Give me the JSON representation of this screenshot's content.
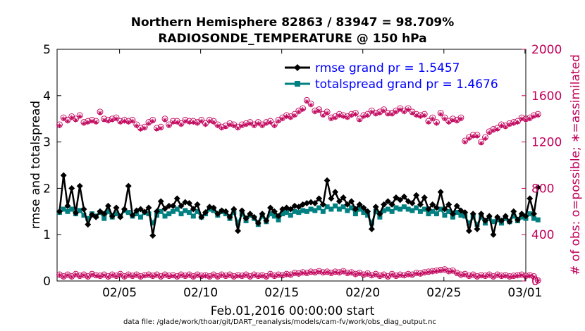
{
  "title_line1": "Northern Hemisphere 82863 / 83947 = 98.709%",
  "title_line2": "RADIOSONDE_TEMPERATURE @ 150 hPa",
  "xlabel": "Feb.01,2016 00:00:00 start",
  "ylabel_left": "rmse and totalspread",
  "ylabel_right": "# of obs: o=possible; ∗=assimilated",
  "footnote": "data file: /glade/work/thoar/git/DART_reanalysis/models/cam-fv/work/obs_diag_output.nc",
  "legend": {
    "rmse": "rmse grand pr = 1.5457",
    "spread": "totalspread grand pr = 1.4676"
  },
  "colors": {
    "rmse": "#000000",
    "spread": "#008080",
    "obs": "#c0005a"
  },
  "chart_data": {
    "type": "line",
    "x_unit": "days since Feb.01,2016 00:00:00",
    "xlim": [
      0,
      29
    ],
    "ylim_left": [
      0,
      5
    ],
    "ylim_right": [
      0,
      2000
    ],
    "x_ticks": [
      {
        "x": 4,
        "label": "02/05"
      },
      {
        "x": 9,
        "label": "02/10"
      },
      {
        "x": 14,
        "label": "02/15"
      },
      {
        "x": 19,
        "label": "02/20"
      },
      {
        "x": 24,
        "label": "02/25"
      },
      {
        "x": 29,
        "label": "03/01"
      }
    ],
    "y_ticks_left": [
      0,
      1,
      2,
      3,
      4,
      5
    ],
    "y_ticks_right": [
      0,
      400,
      800,
      1200,
      1600,
      2000
    ],
    "grid": false,
    "legend_position": "top-right",
    "series": [
      {
        "name": "rmse grand pr = 1.5457",
        "axis": "left",
        "values": [
          1.5,
          2.28,
          1.62,
          2.0,
          1.47,
          2.05,
          1.55,
          1.22,
          1.43,
          1.38,
          1.5,
          1.45,
          1.62,
          1.4,
          1.58,
          1.38,
          1.55,
          2.05,
          1.42,
          1.52,
          1.55,
          1.49,
          1.58,
          0.98,
          1.5,
          1.72,
          1.56,
          1.62,
          1.62,
          1.78,
          1.62,
          1.7,
          1.68,
          1.55,
          1.65,
          1.38,
          1.48,
          1.6,
          1.58,
          1.45,
          1.52,
          1.5,
          1.38,
          1.55,
          1.08,
          1.52,
          1.35,
          1.45,
          1.38,
          1.25,
          1.45,
          1.3,
          1.58,
          1.5,
          1.4,
          1.55,
          1.58,
          1.55,
          1.62,
          1.6,
          1.65,
          1.68,
          1.7,
          1.68,
          1.78,
          1.65,
          2.17,
          1.78,
          1.92,
          1.72,
          1.8,
          1.65,
          1.72,
          1.55,
          1.65,
          1.58,
          1.5,
          1.12,
          1.6,
          1.45,
          1.65,
          1.72,
          1.65,
          1.8,
          1.75,
          1.82,
          1.72,
          1.68,
          1.85,
          1.65,
          1.8,
          1.55,
          1.65,
          1.58,
          1.92,
          1.55,
          1.65,
          1.45,
          1.62,
          1.52,
          1.48,
          1.08,
          1.45,
          1.12,
          1.45,
          1.3,
          1.4,
          1.0,
          1.38,
          1.3,
          1.4,
          1.28,
          1.5,
          1.32,
          1.45,
          1.4,
          1.78,
          1.45,
          2.02
        ]
      },
      {
        "name": "totalspread grand pr = 1.4676",
        "axis": "left",
        "values": [
          1.48,
          1.55,
          1.5,
          1.55,
          1.45,
          1.52,
          1.42,
          1.35,
          1.45,
          1.4,
          1.48,
          1.35,
          1.5,
          1.38,
          1.45,
          1.4,
          1.52,
          1.48,
          1.4,
          1.45,
          1.38,
          1.48,
          1.45,
          1.25,
          1.42,
          1.5,
          1.4,
          1.45,
          1.5,
          1.55,
          1.45,
          1.52,
          1.48,
          1.4,
          1.5,
          1.38,
          1.45,
          1.55,
          1.52,
          1.42,
          1.5,
          1.45,
          1.35,
          1.48,
          1.25,
          1.45,
          1.3,
          1.42,
          1.35,
          1.22,
          1.4,
          1.28,
          1.45,
          1.4,
          1.32,
          1.45,
          1.48,
          1.42,
          1.5,
          1.48,
          1.52,
          1.5,
          1.55,
          1.52,
          1.58,
          1.5,
          1.6,
          1.55,
          1.62,
          1.55,
          1.6,
          1.52,
          1.58,
          1.45,
          1.55,
          1.48,
          1.42,
          1.25,
          1.5,
          1.38,
          1.52,
          1.55,
          1.5,
          1.58,
          1.55,
          1.6,
          1.55,
          1.52,
          1.58,
          1.5,
          1.55,
          1.45,
          1.5,
          1.45,
          1.55,
          1.42,
          1.5,
          1.38,
          1.48,
          1.42,
          1.4,
          1.25,
          1.38,
          1.22,
          1.38,
          1.25,
          1.35,
          1.28,
          1.32,
          1.25,
          1.35,
          1.28,
          1.4,
          1.3,
          1.38,
          1.35,
          1.45,
          1.35,
          1.32
        ]
      },
      {
        "name": "obs possible (o)",
        "axis": "right",
        "values": [
          1350,
          1410,
          1390,
          1420,
          1400,
          1430,
          1370,
          1380,
          1390,
          1380,
          1460,
          1400,
          1390,
          1400,
          1410,
          1380,
          1390,
          1380,
          1390,
          1350,
          1320,
          1330,
          1370,
          1390,
          1320,
          1330,
          1400,
          1350,
          1380,
          1380,
          1360,
          1390,
          1380,
          1380,
          1370,
          1390,
          1360,
          1390,
          1380,
          1350,
          1330,
          1340,
          1360,
          1350,
          1330,
          1350,
          1360,
          1370,
          1350,
          1370,
          1350,
          1370,
          1380,
          1350,
          1390,
          1410,
          1430,
          1420,
          1440,
          1470,
          1490,
          1560,
          1530,
          1470,
          1480,
          1440,
          1460,
          1410,
          1420,
          1440,
          1430,
          1420,
          1440,
          1450,
          1400,
          1430,
          1440,
          1470,
          1450,
          1460,
          1480,
          1450,
          1450,
          1470,
          1490,
          1470,
          1490,
          1460,
          1440,
          1430,
          1440,
          1380,
          1410,
          1370,
          1450,
          1410,
          1380,
          1400,
          1390,
          1410,
          1210,
          1240,
          1260,
          1260,
          1200,
          1240,
          1290,
          1310,
          1320,
          1350,
          1340,
          1360,
          1370,
          1380,
          1410,
          1400,
          1410,
          1430,
          1440
        ]
      },
      {
        "name": "obs assimilated (*)",
        "axis": "right",
        "values": [
          1340,
          1400,
          1380,
          1410,
          1390,
          1420,
          1360,
          1370,
          1380,
          1370,
          1450,
          1390,
          1380,
          1390,
          1400,
          1370,
          1380,
          1370,
          1380,
          1340,
          1310,
          1320,
          1360,
          1380,
          1310,
          1320,
          1390,
          1340,
          1370,
          1370,
          1350,
          1380,
          1370,
          1370,
          1360,
          1380,
          1350,
          1380,
          1370,
          1340,
          1320,
          1330,
          1350,
          1340,
          1320,
          1340,
          1350,
          1360,
          1340,
          1360,
          1340,
          1360,
          1370,
          1340,
          1380,
          1400,
          1420,
          1410,
          1430,
          1460,
          1480,
          1550,
          1520,
          1460,
          1470,
          1430,
          1450,
          1400,
          1410,
          1430,
          1420,
          1410,
          1430,
          1440,
          1390,
          1420,
          1430,
          1460,
          1440,
          1450,
          1470,
          1440,
          1440,
          1460,
          1480,
          1460,
          1480,
          1450,
          1430,
          1420,
          1430,
          1370,
          1400,
          1360,
          1440,
          1400,
          1370,
          1390,
          1380,
          1400,
          1200,
          1230,
          1250,
          1250,
          1190,
          1230,
          1280,
          1300,
          1310,
          1340,
          1330,
          1350,
          1360,
          1370,
          1400,
          1390,
          1400,
          1420,
          1430
        ]
      },
      {
        "name": "obs possible (o) low",
        "axis": "right",
        "values": [
          55,
          40,
          55,
          40,
          60,
          45,
          55,
          40,
          60,
          50,
          45,
          55,
          40,
          55,
          45,
          60,
          40,
          55,
          45,
          55,
          40,
          50,
          55,
          45,
          55,
          40,
          55,
          45,
          50,
          40,
          55,
          45,
          55,
          40,
          55,
          45,
          50,
          40,
          55,
          40,
          55,
          45,
          55,
          40,
          50,
          45,
          55,
          40,
          55,
          45,
          50,
          40,
          60,
          45,
          55,
          50,
          60,
          55,
          70,
          65,
          75,
          70,
          80,
          75,
          85,
          75,
          80,
          70,
          80,
          75,
          85,
          70,
          75,
          60,
          70,
          55,
          65,
          50,
          60,
          45,
          55,
          40,
          60,
          45,
          55,
          50,
          60,
          55,
          70,
          65,
          75,
          80,
          85,
          90,
          95,
          100,
          85,
          90,
          70,
          55,
          60,
          45,
          55,
          40,
          50,
          45,
          55,
          40,
          55,
          45,
          50,
          40,
          45,
          50,
          55,
          45,
          50,
          40,
          5
        ]
      },
      {
        "name": "obs assimilated (*) low",
        "axis": "right",
        "values": [
          50,
          35,
          50,
          35,
          55,
          40,
          50,
          35,
          55,
          45,
          40,
          50,
          35,
          50,
          40,
          55,
          35,
          50,
          40,
          50,
          35,
          45,
          50,
          40,
          50,
          35,
          50,
          40,
          45,
          35,
          50,
          40,
          50,
          35,
          50,
          40,
          45,
          35,
          50,
          35,
          50,
          40,
          50,
          35,
          45,
          40,
          50,
          35,
          50,
          40,
          45,
          35,
          55,
          40,
          50,
          45,
          55,
          50,
          65,
          60,
          70,
          65,
          75,
          70,
          80,
          70,
          75,
          65,
          75,
          70,
          80,
          65,
          70,
          55,
          65,
          50,
          60,
          45,
          55,
          40,
          50,
          35,
          55,
          40,
          50,
          45,
          55,
          50,
          65,
          60,
          70,
          75,
          80,
          85,
          90,
          95,
          80,
          85,
          65,
          50,
          55,
          40,
          50,
          35,
          45,
          40,
          50,
          35,
          50,
          40,
          45,
          35,
          40,
          45,
          50,
          40,
          45,
          35,
          2
        ]
      }
    ]
  }
}
